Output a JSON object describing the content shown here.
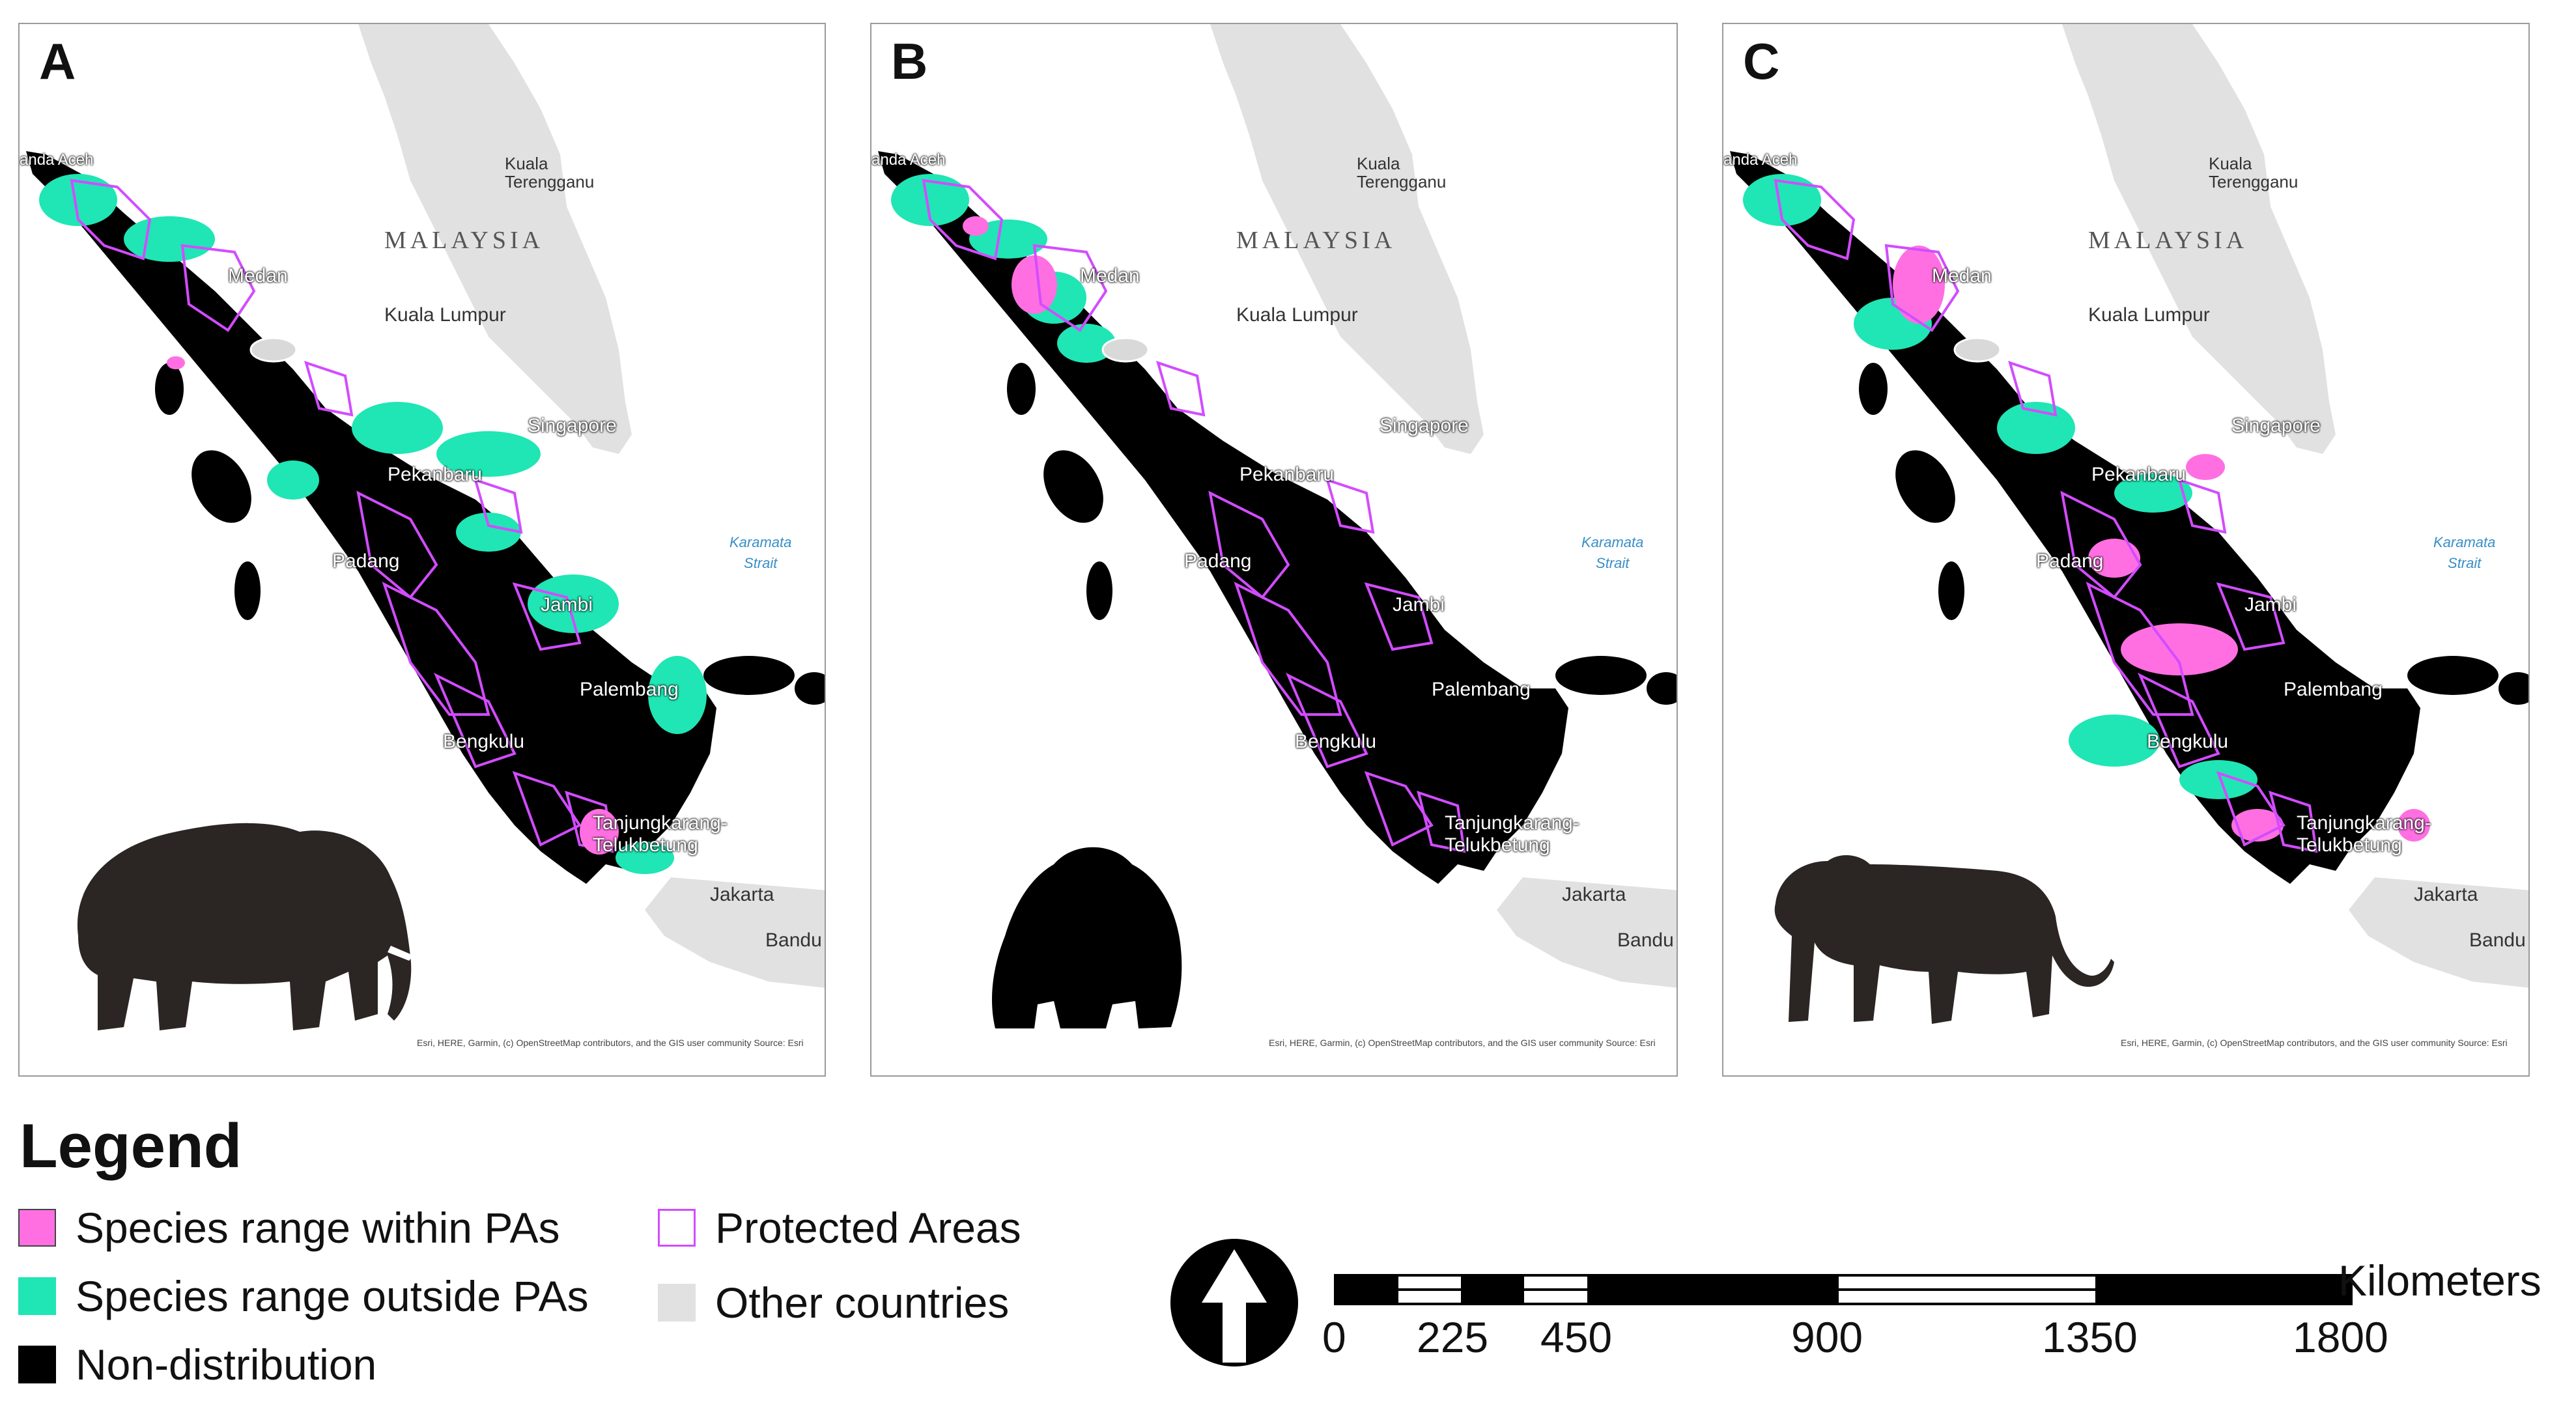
{
  "panels": [
    {
      "letter": "A",
      "animal": "elephant-silhouette"
    },
    {
      "letter": "B",
      "animal": "orangutan-silhouette"
    },
    {
      "letter": "C",
      "animal": "tiger-silhouette"
    }
  ],
  "places": {
    "aceh": "anda Aceh",
    "kuala_terengganu": "Kuala\nTerengganu",
    "malaysia": "MALAYSIA",
    "medan": "Medan",
    "kuala_lumpur": "Kuala Lumpur",
    "singapore": "Singapore",
    "pekanbaru": "Pekanbaru",
    "karamata": "Karamata\nStrait",
    "padang": "Padang",
    "jambi": "Jambi",
    "palembang": "Palembang",
    "bengkulu": "Bengkulu",
    "tanjungkarang": "Tanjungkarang-\nTelukbetung",
    "jakarta": "Jakarta",
    "bandung": "Bandu"
  },
  "attribution": "Esri, HERE, Garmin, (c) OpenStreetMap contributors, and the GIS user community Source: Esri",
  "legend": {
    "title": "Legend",
    "items": [
      {
        "label": "Species range within PAs",
        "color": "#ff6fe2"
      },
      {
        "label": "Species range outside PAs",
        "color": "#1fe6b4"
      },
      {
        "label": "Non-distribution",
        "color": "#000000"
      },
      {
        "label": "Protected Areas",
        "color": "#d24cff"
      },
      {
        "label": "Other countries",
        "color": "#e1e1e1"
      }
    ]
  },
  "scale_bar": {
    "unit": "Kilometers",
    "ticks": [
      "0",
      "225",
      "450",
      "900",
      "1350",
      "1800"
    ]
  },
  "north_arrow": "north-arrow-icon"
}
